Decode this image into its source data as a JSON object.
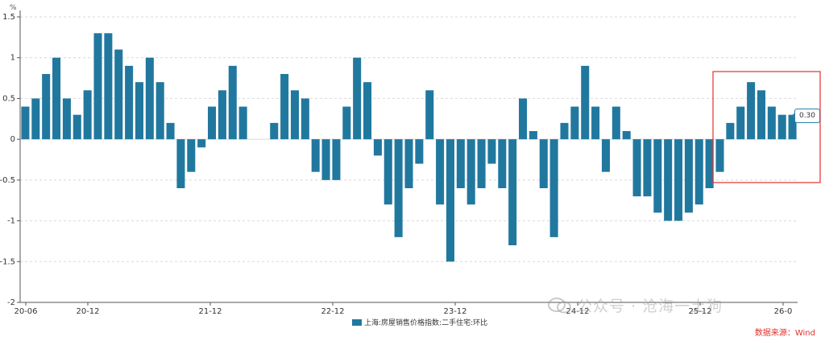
{
  "chart_data": {
    "type": "bar",
    "unit": "%",
    "ylim": [
      -2,
      1.5
    ],
    "yticks": [
      "1.5",
      "1",
      "0.5",
      "0",
      "-0.5",
      "-1",
      "-1.5",
      "-2"
    ],
    "xtick_labels": [
      "20-06",
      "20-12",
      "21-12",
      "22-12",
      "23-12",
      "24-12",
      "25-12",
      "26-0"
    ],
    "series": [
      {
        "name": "上海:房屋销售价格指数:二手住宅:环比",
        "color": "#21789f",
        "values": [
          0.4,
          0.5,
          0.8,
          1.0,
          0.5,
          0.3,
          0.6,
          1.3,
          1.3,
          1.1,
          0.9,
          0.7,
          1.0,
          0.7,
          0.2,
          -0.6,
          -0.4,
          -0.1,
          0.4,
          0.6,
          0.9,
          0.4,
          0,
          0,
          0.2,
          0.8,
          0.6,
          0.5,
          -0.4,
          -0.5,
          -0.5,
          0.4,
          1.0,
          0.7,
          -0.2,
          -0.8,
          -1.2,
          -0.6,
          -0.3,
          0.6,
          -0.8,
          -1.5,
          -0.6,
          -0.8,
          -0.6,
          -0.3,
          -0.6,
          -1.3,
          0.5,
          0.1,
          -0.6,
          -1.2,
          0.2,
          0.4,
          0.9,
          0.4,
          -0.4,
          0.4,
          0.1,
          -0.7,
          -0.7,
          -0.9,
          -1.0,
          -1.0,
          -0.9,
          -0.8,
          -0.6,
          -0.4,
          0.2,
          0.4,
          0.7,
          0.6,
          0.4,
          0.3,
          0.3
        ]
      }
    ],
    "tooltip": "0.30",
    "grid": true,
    "legend_position": "bottom-center"
  },
  "source_note": "数据来源：Wind",
  "watermark": "公众号 · 沧海一土狗"
}
